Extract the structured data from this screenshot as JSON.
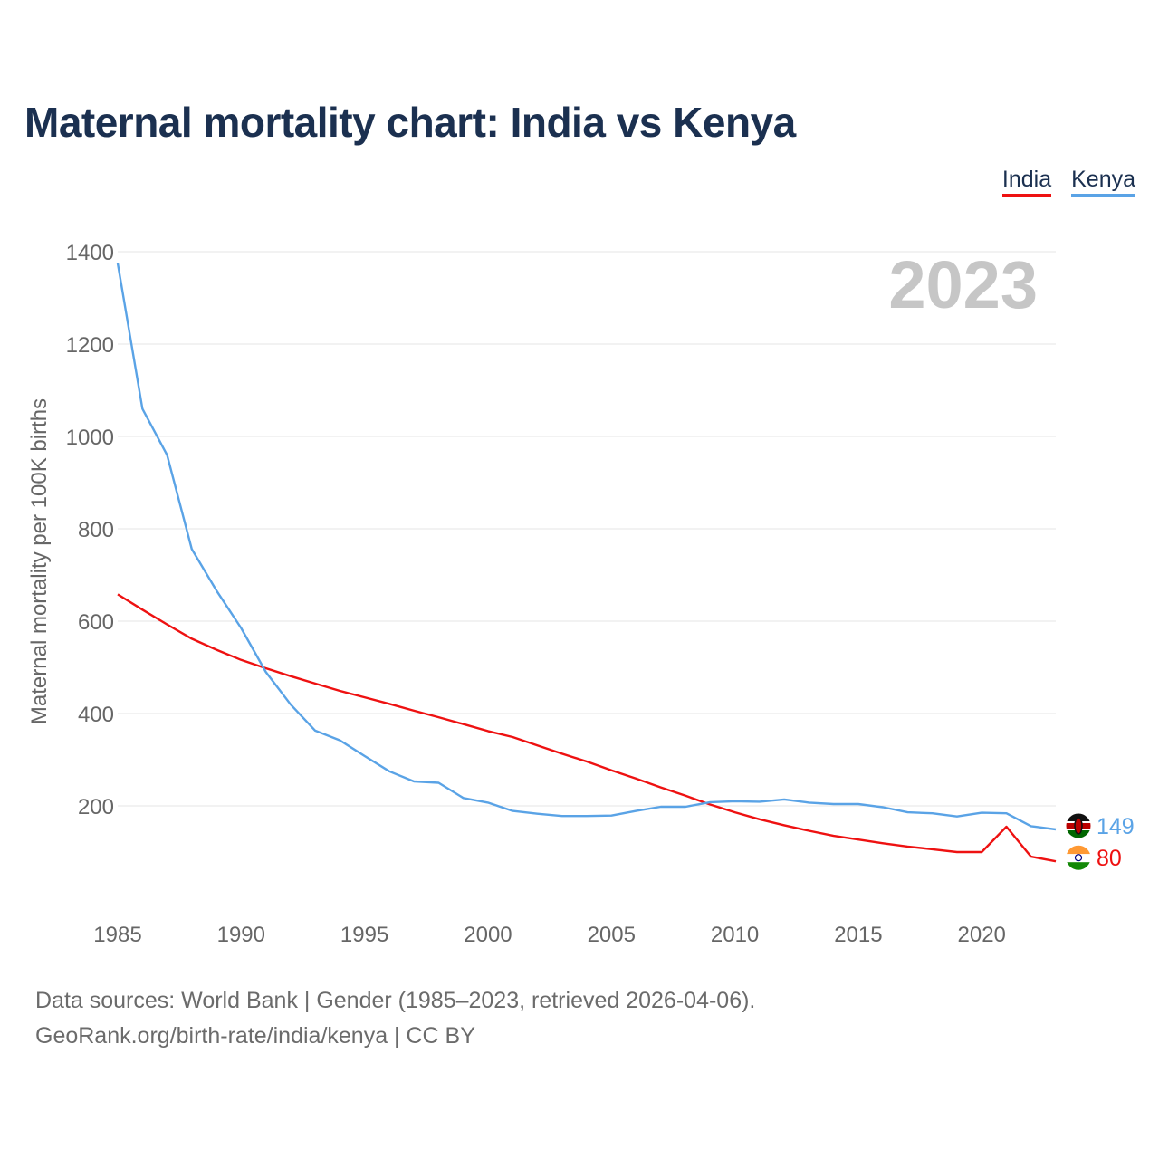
{
  "title": "Maternal mortality chart: India vs Kenya",
  "legend": {
    "india": "India",
    "kenya": "Kenya"
  },
  "year_watermark": "2023",
  "source": {
    "line1": "Data sources: World Bank | Gender (1985–2023, retrieved 2026-04-06).",
    "line2": "GeoRank.org/birth-rate/india/kenya | CC BY"
  },
  "colors": {
    "india": "#ee1111",
    "kenya": "#5aa3e6",
    "grid": "#e6e6e6",
    "axis_text": "#666666"
  },
  "chart_data": {
    "type": "line",
    "title": "Maternal mortality chart: India vs Kenya",
    "xlabel": "",
    "ylabel": "Maternal mortality per 100K births",
    "xlim": [
      1985,
      2023
    ],
    "ylim": [
      0,
      1400
    ],
    "x_ticks": [
      "1985",
      "1990",
      "1995",
      "2000",
      "2005",
      "2010",
      "2015",
      "2020"
    ],
    "y_ticks": [
      "200",
      "400",
      "600",
      "800",
      "1000",
      "1200",
      "1400"
    ],
    "x": [
      1985,
      1986,
      1987,
      1988,
      1989,
      1990,
      1991,
      1992,
      1993,
      1994,
      1995,
      1996,
      1997,
      1998,
      1999,
      2000,
      2001,
      2002,
      2003,
      2004,
      2005,
      2006,
      2007,
      2008,
      2009,
      2010,
      2011,
      2012,
      2013,
      2014,
      2015,
      2016,
      2017,
      2018,
      2019,
      2020,
      2021,
      2022,
      2023
    ],
    "series": [
      {
        "name": "India",
        "color": "#ee1111",
        "end_label": "80",
        "values": [
          658,
          625,
          593,
          562,
          538,
          516,
          498,
          481,
          465,
          449,
          435,
          421,
          406,
          392,
          377,
          362,
          349,
          331,
          313,
          296,
          277,
          259,
          240,
          222,
          203,
          186,
          171,
          158,
          146,
          135,
          127,
          119,
          112,
          106,
          100,
          100,
          155,
          90,
          80
        ]
      },
      {
        "name": "Kenya",
        "color": "#5aa3e6",
        "end_label": "149",
        "values": [
          1375,
          1060,
          960,
          756,
          666,
          585,
          490,
          420,
          363,
          342,
          308,
          275,
          253,
          250,
          217,
          207,
          189,
          183,
          178,
          178,
          179,
          189,
          198,
          198,
          208,
          210,
          209,
          214,
          207,
          204,
          204,
          197,
          186,
          184,
          177,
          185,
          184,
          156,
          149
        ]
      }
    ]
  }
}
